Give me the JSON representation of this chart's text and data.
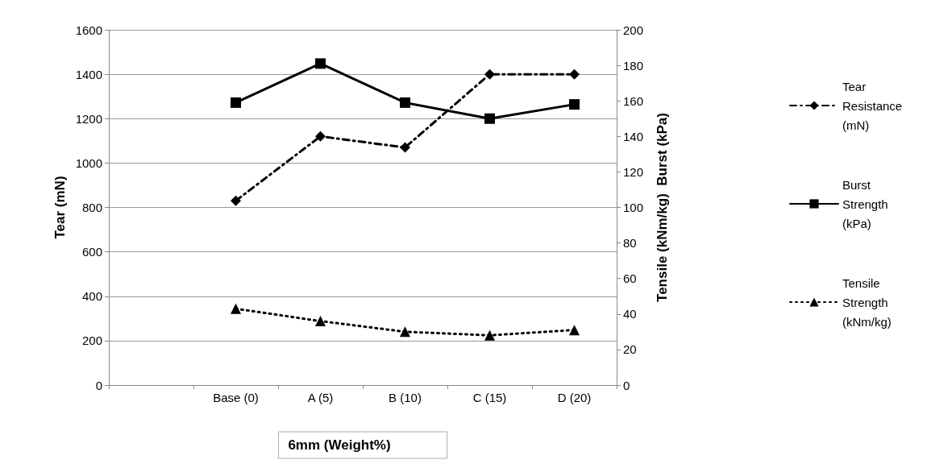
{
  "chart_data": {
    "type": "line",
    "categories": [
      null,
      "Base (0)",
      "A (5)",
      "B (10)",
      "C (15)",
      "D (20)"
    ],
    "xlabel": "6mm (Weight%)",
    "ylabel": "Tear (mN)",
    "y2label": "Tensile (kNm/kg)  Burst (kPa)",
    "ylim": [
      0,
      1600
    ],
    "yticks": [
      0,
      200,
      400,
      600,
      800,
      1000,
      1200,
      1400,
      1600
    ],
    "y2lim": [
      0,
      200
    ],
    "y2ticks": [
      0,
      20,
      40,
      60,
      80,
      100,
      120,
      140,
      160,
      180,
      200
    ],
    "grid": "y",
    "legend": "right",
    "series": [
      {
        "name": "Tear Resistance (mN)",
        "color": "#000000",
        "marker": "diamond",
        "line_style": "dashed",
        "values": [
          null,
          830,
          1120,
          1070,
          1400,
          1400
        ]
      },
      {
        "name": "Burst Strength (kPa)",
        "color": "#000000",
        "marker": "square",
        "line_style": "solid",
        "axis": "y2",
        "values": [
          null,
          159,
          181,
          159,
          150,
          158
        ]
      },
      {
        "name": "Tensile Strength (kNm/kg)",
        "color": "#000000",
        "marker": "triangle",
        "line_style": "dotted",
        "axis": "y2",
        "values": [
          null,
          43,
          36,
          30,
          28,
          31
        ]
      }
    ]
  }
}
